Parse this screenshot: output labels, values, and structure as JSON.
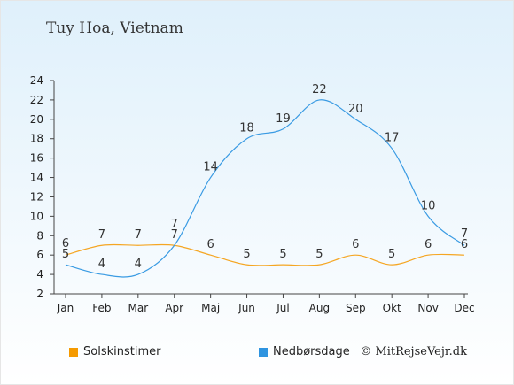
{
  "chart_data": {
    "type": "line",
    "title": "Tuy Hoa, Vietnam",
    "categories": [
      "Jan",
      "Feb",
      "Mar",
      "Apr",
      "Maj",
      "Jun",
      "Jul",
      "Aug",
      "Sep",
      "Okt",
      "Nov",
      "Dec"
    ],
    "ylim": [
      2,
      24
    ],
    "yticks": [
      2,
      4,
      6,
      8,
      10,
      12,
      14,
      16,
      18,
      20,
      22,
      24
    ],
    "series": [
      {
        "name": "Solskinstimer",
        "color": "#f5a623",
        "values": [
          6,
          7,
          7,
          7,
          6,
          5,
          5,
          5,
          6,
          5,
          6,
          6
        ]
      },
      {
        "name": "Nedbørsdage",
        "color": "#3a9be3",
        "values": [
          5,
          4,
          4,
          7,
          14,
          18,
          19,
          22,
          20,
          17,
          10,
          7
        ]
      }
    ],
    "grid": false,
    "legend": "bottom"
  },
  "credit": "© MitRejseVejr.dk"
}
